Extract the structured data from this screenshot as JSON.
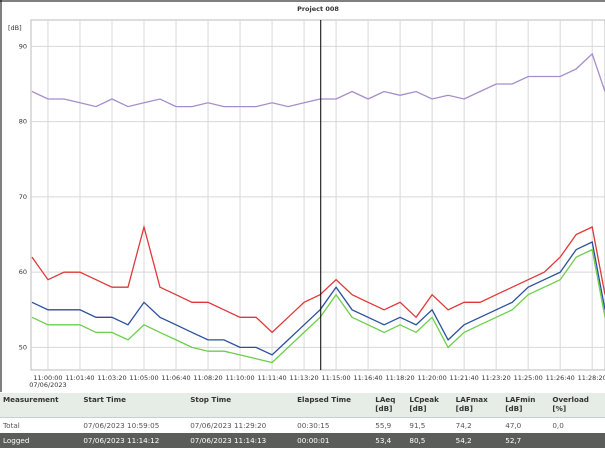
{
  "chart_data": {
    "type": "line",
    "title": "Project 008",
    "y_label": "[dB]",
    "ylim": [
      47,
      93.5
    ],
    "yticks": [
      50,
      60,
      70,
      80,
      90
    ],
    "grid": true,
    "xlim": [
      "10:59:07",
      "11:29:00"
    ],
    "xticks": [
      "11:00:00",
      "11:01:40",
      "11:03:20",
      "11:05:00",
      "11:06:40",
      "11:08:20",
      "11:10:00",
      "11:11:40",
      "11:13:20",
      "11:15:00",
      "11:16:40",
      "11:18:20",
      "11:20:00",
      "11:21:40",
      "11:23:20",
      "11:25:00",
      "11:26:40",
      "11:28:20"
    ],
    "x_date_label": "07/06/2023",
    "cursor": "11:14:12",
    "x": [
      "10:59:10",
      "11:00:00",
      "11:00:50",
      "11:01:40",
      "11:02:30",
      "11:03:20",
      "11:04:10",
      "11:05:00",
      "11:05:50",
      "11:06:40",
      "11:07:30",
      "11:08:20",
      "11:09:10",
      "11:10:00",
      "11:10:50",
      "11:11:40",
      "11:12:30",
      "11:13:20",
      "11:14:10",
      "11:15:00",
      "11:15:50",
      "11:16:40",
      "11:17:30",
      "11:18:20",
      "11:19:10",
      "11:20:00",
      "11:20:50",
      "11:21:40",
      "11:22:30",
      "11:23:20",
      "11:24:10",
      "11:25:00",
      "11:25:50",
      "11:26:40",
      "11:27:30",
      "11:28:20",
      "11:29:00"
    ],
    "series": [
      {
        "color": "#a58ecb",
        "values": [
          84,
          83,
          83,
          82.5,
          82,
          83,
          82,
          82.5,
          83,
          82,
          82,
          82.5,
          82,
          82,
          82,
          82.5,
          82,
          82.5,
          83,
          83,
          84,
          83,
          84,
          83.5,
          84,
          83,
          83.5,
          83,
          84,
          85,
          85,
          86,
          86,
          86,
          87,
          89,
          84
        ]
      },
      {
        "color": "#e0383a",
        "values": [
          62,
          59,
          60,
          60,
          59,
          58,
          58,
          66,
          58,
          57,
          56,
          56,
          55,
          54,
          54,
          52,
          54,
          56,
          57,
          59,
          57,
          56,
          55,
          56,
          54,
          57,
          55,
          56,
          56,
          57,
          58,
          59,
          60,
          62,
          65,
          66,
          57
        ]
      },
      {
        "color": "#2c4f9e",
        "values": [
          56,
          55,
          55,
          55,
          54,
          54,
          53,
          56,
          54,
          53,
          52,
          51,
          51,
          50,
          50,
          49,
          51,
          53,
          55,
          58,
          55,
          54,
          53,
          54,
          53,
          55,
          51,
          53,
          54,
          55,
          56,
          58,
          59,
          60,
          63,
          64,
          55
        ]
      },
      {
        "color": "#6ccf4c",
        "values": [
          54,
          53,
          53,
          53,
          52,
          52,
          51,
          53,
          52,
          51,
          50,
          49.5,
          49.5,
          49,
          48.5,
          48,
          50,
          52,
          54,
          57,
          54,
          53,
          52,
          53,
          52,
          54,
          50,
          52,
          53,
          54,
          55,
          57,
          58,
          59,
          62,
          63,
          54
        ]
      }
    ]
  },
  "table": {
    "headers": [
      "Measurement",
      "Start Time",
      "Stop Time",
      "Elapsed Time",
      "LAeq\n[dB]",
      "LCpeak\n[dB]",
      "LAFmax\n[dB]",
      "LAFmin\n[dB]",
      "Overload\n[%]"
    ],
    "rows": [
      [
        "Total",
        "07/06/2023 10:59:05",
        "07/06/2023 11:29:20",
        "00:30:15",
        "55,9",
        "91,5",
        "74,2",
        "47,0",
        "0,0"
      ],
      [
        "Logged",
        "07/06/2023 11:14:12",
        "07/06/2023 11:14:13",
        "00:00:01",
        "53,4",
        "80,5",
        "54,2",
        "52,7"
      ]
    ]
  }
}
